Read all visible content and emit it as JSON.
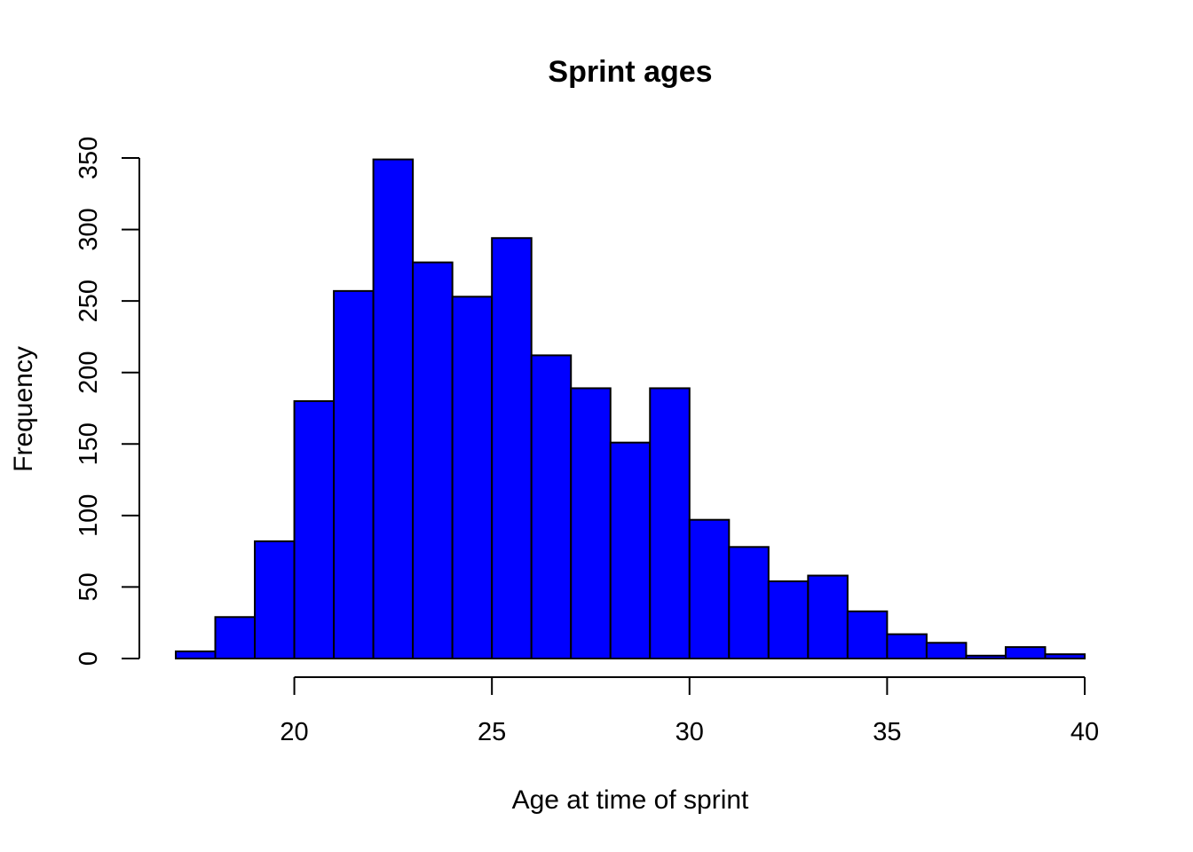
{
  "chart_data": {
    "type": "bar",
    "title": "Sprint ages",
    "xlabel": "Age at time of sprint",
    "ylabel": "Frequency",
    "bar_color": "#0000ff",
    "border_color": "#000000",
    "bin_width": 1,
    "bins": [
      {
        "start": 17,
        "end": 18,
        "count": 5
      },
      {
        "start": 18,
        "end": 19,
        "count": 29
      },
      {
        "start": 19,
        "end": 20,
        "count": 82
      },
      {
        "start": 20,
        "end": 21,
        "count": 180
      },
      {
        "start": 21,
        "end": 22,
        "count": 257
      },
      {
        "start": 22,
        "end": 23,
        "count": 349
      },
      {
        "start": 23,
        "end": 24,
        "count": 277
      },
      {
        "start": 24,
        "end": 25,
        "count": 253
      },
      {
        "start": 25,
        "end": 26,
        "count": 294
      },
      {
        "start": 26,
        "end": 27,
        "count": 212
      },
      {
        "start": 27,
        "end": 28,
        "count": 189
      },
      {
        "start": 28,
        "end": 29,
        "count": 151
      },
      {
        "start": 29,
        "end": 30,
        "count": 189
      },
      {
        "start": 30,
        "end": 31,
        "count": 97
      },
      {
        "start": 31,
        "end": 32,
        "count": 78
      },
      {
        "start": 32,
        "end": 33,
        "count": 54
      },
      {
        "start": 33,
        "end": 34,
        "count": 58
      },
      {
        "start": 34,
        "end": 35,
        "count": 33
      },
      {
        "start": 35,
        "end": 36,
        "count": 17
      },
      {
        "start": 36,
        "end": 37,
        "count": 11
      },
      {
        "start": 37,
        "end": 38,
        "count": 2
      },
      {
        "start": 38,
        "end": 39,
        "count": 8
      },
      {
        "start": 39,
        "end": 40,
        "count": 3
      }
    ],
    "xticks": [
      20,
      25,
      30,
      35,
      40
    ],
    "yticks": [
      0,
      50,
      100,
      150,
      200,
      250,
      300,
      350
    ],
    "xlim": [
      17,
      40
    ],
    "ylim": [
      0,
      350
    ],
    "grid": false
  }
}
